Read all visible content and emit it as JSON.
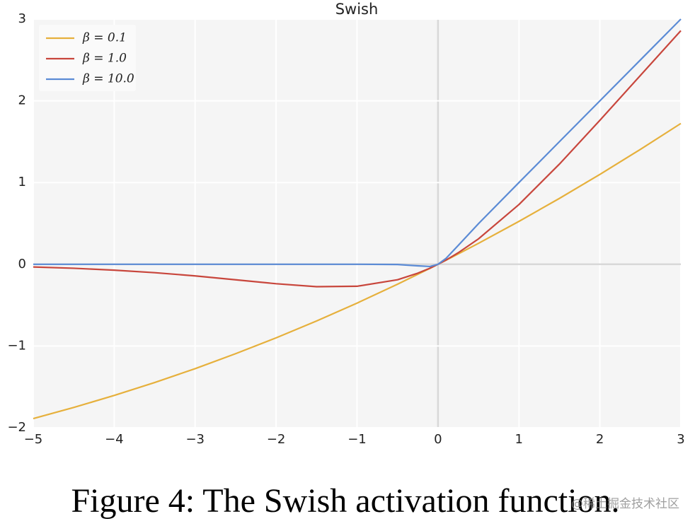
{
  "chart_data": {
    "type": "line",
    "title": "Swish",
    "x": [
      -5,
      -4.5,
      -4,
      -3.5,
      -3,
      -2.5,
      -2,
      -1.5,
      -1,
      -0.5,
      -0.25,
      -0.1,
      0,
      0.1,
      0.25,
      0.5,
      1,
      1.5,
      2,
      2.5,
      3
    ],
    "series": [
      {
        "name": "β = 0.1",
        "color": "#e6b03c",
        "values": [
          -1.888,
          -1.752,
          -1.605,
          -1.447,
          -1.277,
          -1.094,
          -0.9,
          -0.694,
          -0.475,
          -0.244,
          -0.123,
          -0.05,
          0,
          0.05,
          0.127,
          0.256,
          0.525,
          0.806,
          1.1,
          1.406,
          1.723
        ]
      },
      {
        "name": "β = 1.0",
        "color": "#c8463c",
        "values": [
          -0.033,
          -0.049,
          -0.072,
          -0.103,
          -0.142,
          -0.19,
          -0.238,
          -0.274,
          -0.269,
          -0.189,
          -0.109,
          -0.048,
          0,
          0.052,
          0.141,
          0.311,
          0.731,
          1.226,
          1.762,
          2.31,
          2.858
        ]
      },
      {
        "name": "β = 10.0",
        "color": "#5b8bd5",
        "values": [
          0,
          0,
          0,
          0,
          0,
          0,
          0,
          0,
          0,
          -0.003,
          -0.019,
          -0.027,
          0,
          0.073,
          0.231,
          0.497,
          1,
          1.5,
          2,
          2.5,
          3
        ]
      }
    ],
    "xlim": [
      -5,
      3
    ],
    "xticks": [
      {
        "value": -5,
        "label": "−5"
      },
      {
        "value": -4,
        "label": "−4"
      },
      {
        "value": -3,
        "label": "−3"
      },
      {
        "value": -2,
        "label": "−2"
      },
      {
        "value": -1,
        "label": "−1"
      },
      0,
      1,
      2,
      3
    ],
    "ylim": [
      -2,
      3
    ],
    "yticks": [
      {
        "value": -2,
        "label": "−2"
      },
      {
        "value": -1,
        "label": "−1"
      },
      0,
      1,
      2,
      3
    ],
    "grid": true,
    "zero_lines": true,
    "legend": "upper-left"
  },
  "caption": "Figure 4: The Swish activation function.",
  "watermark": "@稀土掘金技术社区"
}
